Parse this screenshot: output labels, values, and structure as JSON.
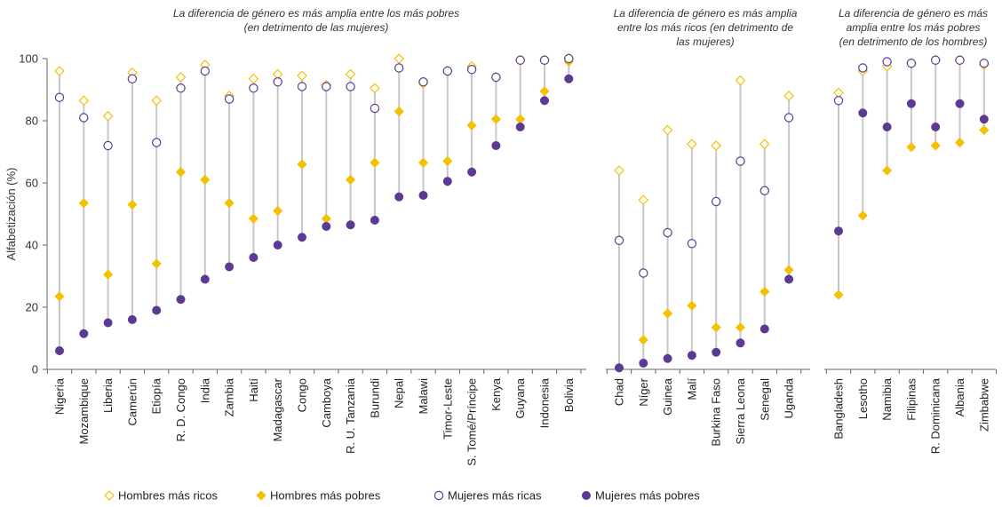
{
  "colors": {
    "men": "#F5C000",
    "women": "#5B3A93",
    "stem": "#C8C8C8",
    "axis": "#666666"
  },
  "annotations": [
    [
      "La diferencia de género es más amplia entre los más pobres",
      "(en detrimento de las mujeres)"
    ],
    [
      "La diferencia de género es más amplia",
      "entre los más ricos (en detrimento de",
      "las mujeres)"
    ],
    [
      "La diferencia de género es más",
      "amplia entre los más pobres",
      "(en detrimento de los hombres)"
    ]
  ],
  "chart_data": {
    "type": "scatter",
    "ylabel": "Alfabetización (%)",
    "ylim": [
      0,
      100
    ],
    "yticks": [
      0,
      20,
      40,
      60,
      80,
      100
    ],
    "grid": false,
    "legend_position": "bottom",
    "legend": [
      "Hombres más ricos",
      "Hombres más pobres",
      "Mujeres más ricas",
      "Mujeres más pobres"
    ],
    "groups": [
      {
        "categories": [
          "Nigeria",
          "Mozambique",
          "Liberia",
          "Camerún",
          "Etiopía",
          "R. D. Congo",
          "India",
          "Zambia",
          "Haití",
          "Madagascar",
          "Congo",
          "Camboya",
          "R. U. Tanzania",
          "Burundi",
          "Nepal",
          "Malawi",
          "Timor-Leste",
          "S. Tomé/Príncipe",
          "Kenya",
          "Guyana",
          "Indonesia",
          "Bolivia"
        ],
        "series": [
          {
            "name": "Hombres más ricos",
            "values": [
              96,
              86.5,
              81.5,
              95.5,
              86.5,
              94,
              98,
              88,
              93.5,
              95,
              94.5,
              91.5,
              95,
              90.5,
              100,
              92,
              96,
              97.5,
              94,
              99.5,
              99.5,
              100
            ]
          },
          {
            "name": "Hombres más pobres",
            "values": [
              23.5,
              53.5,
              30.5,
              53,
              34,
              63.5,
              61,
              53.5,
              48.5,
              51,
              66,
              48.5,
              61,
              66.5,
              83,
              66.5,
              67,
              78.5,
              80.5,
              80.5,
              89.5,
              99
            ]
          },
          {
            "name": "Mujeres más ricas",
            "values": [
              87.5,
              81,
              72,
              93.5,
              73,
              90.5,
              96,
              87,
              90.5,
              92.5,
              91,
              91,
              91,
              84,
              97,
              92.5,
              96,
              96.5,
              94,
              99.5,
              99.5,
              100
            ]
          },
          {
            "name": "Mujeres más pobres",
            "values": [
              6,
              11.5,
              15,
              16,
              19,
              22.5,
              29,
              33,
              36,
              40,
              42.5,
              46,
              46.5,
              48,
              55.5,
              56,
              60.5,
              63.5,
              72,
              78,
              86.5,
              93.5
            ]
          }
        ]
      },
      {
        "categories": [
          "Chad",
          "Níger",
          "Guinea",
          "Malí",
          "Burkina Faso",
          "Sierra Leona",
          "Senegal",
          "Uganda"
        ],
        "series": [
          {
            "name": "Hombres más ricos",
            "values": [
              64,
              54.5,
              77,
              72.5,
              72,
              93,
              72.5,
              88
            ]
          },
          {
            "name": "Hombres más pobres",
            "values": [
              0.5,
              9.5,
              18,
              20.5,
              13.5,
              13.5,
              25,
              32
            ]
          },
          {
            "name": "Mujeres más ricas",
            "values": [
              41.5,
              31,
              44,
              40.5,
              54,
              67,
              57.5,
              81
            ]
          },
          {
            "name": "Mujeres más pobres",
            "values": [
              0.5,
              2,
              3.5,
              4.5,
              5.5,
              8.5,
              13,
              29
            ]
          }
        ]
      },
      {
        "categories": [
          "Bangladesh",
          "Lesotho",
          "Namibia",
          "Filipinas",
          "R. Dominicana",
          "Albania",
          "Zimbabwe"
        ],
        "series": [
          {
            "name": "Hombres más ricos",
            "values": [
              89,
              96,
              97.5,
              98.5,
              99.5,
              99.5,
              98
            ]
          },
          {
            "name": "Hombres más pobres",
            "values": [
              24,
              49.5,
              64,
              71.5,
              72,
              73,
              77
            ]
          },
          {
            "name": "Mujeres más ricas",
            "values": [
              86.5,
              97,
              99,
              98.5,
              99.5,
              99.5,
              98.5
            ]
          },
          {
            "name": "Mujeres más pobres",
            "values": [
              44.5,
              82.5,
              78,
              85.5,
              78,
              85.5,
              80.5
            ]
          }
        ]
      }
    ]
  }
}
